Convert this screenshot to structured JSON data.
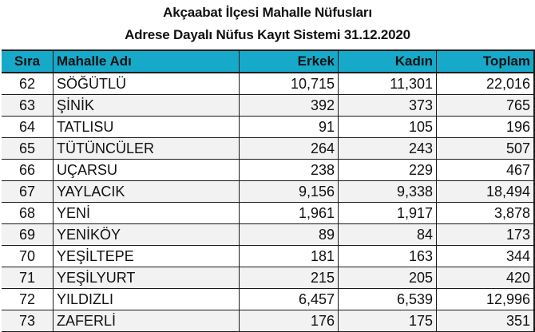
{
  "header": {
    "title": "Akçaabat İlçesi Mahalle Nüfusları",
    "subtitle": "Adrese Dayalı Nüfus Kayıt Sistemi 31.12.2020"
  },
  "colors": {
    "header_bg": "#17a9c9",
    "row_alt_bg": "#f2f2f2",
    "border": "#1a1a1a"
  },
  "table": {
    "columns": [
      "Sıra",
      "Mahalle Adı",
      "Erkek",
      "Kadın",
      "Toplam"
    ],
    "rows": [
      {
        "sira": "62",
        "name": "SÖĞÜTLÜ",
        "erkek": "10,715",
        "kadin": "11,301",
        "toplam": "22,016"
      },
      {
        "sira": "63",
        "name": "ŞİNİK",
        "erkek": "392",
        "kadin": "373",
        "toplam": "765"
      },
      {
        "sira": "64",
        "name": "TATLISU",
        "erkek": "91",
        "kadin": "105",
        "toplam": "196"
      },
      {
        "sira": "65",
        "name": "TÜTÜNCÜLER",
        "erkek": "264",
        "kadin": "243",
        "toplam": "507"
      },
      {
        "sira": "66",
        "name": "UÇARSU",
        "erkek": "238",
        "kadin": "229",
        "toplam": "467"
      },
      {
        "sira": "67",
        "name": "YAYLACIK",
        "erkek": "9,156",
        "kadin": "9,338",
        "toplam": "18,494"
      },
      {
        "sira": "68",
        "name": "YENİ",
        "erkek": "1,961",
        "kadin": "1,917",
        "toplam": "3,878"
      },
      {
        "sira": "69",
        "name": "YENİKÖY",
        "erkek": "89",
        "kadin": "84",
        "toplam": "173"
      },
      {
        "sira": "70",
        "name": "YEŞİLTEPE",
        "erkek": "181",
        "kadin": "163",
        "toplam": "344"
      },
      {
        "sira": "71",
        "name": "YEŞİLYURT",
        "erkek": "215",
        "kadin": "205",
        "toplam": "420"
      },
      {
        "sira": "72",
        "name": "YILDIZLI",
        "erkek": "6,457",
        "kadin": "6,539",
        "toplam": "12,996"
      },
      {
        "sira": "73",
        "name": "ZAFERLİ",
        "erkek": "176",
        "kadin": "175",
        "toplam": "351"
      }
    ]
  }
}
